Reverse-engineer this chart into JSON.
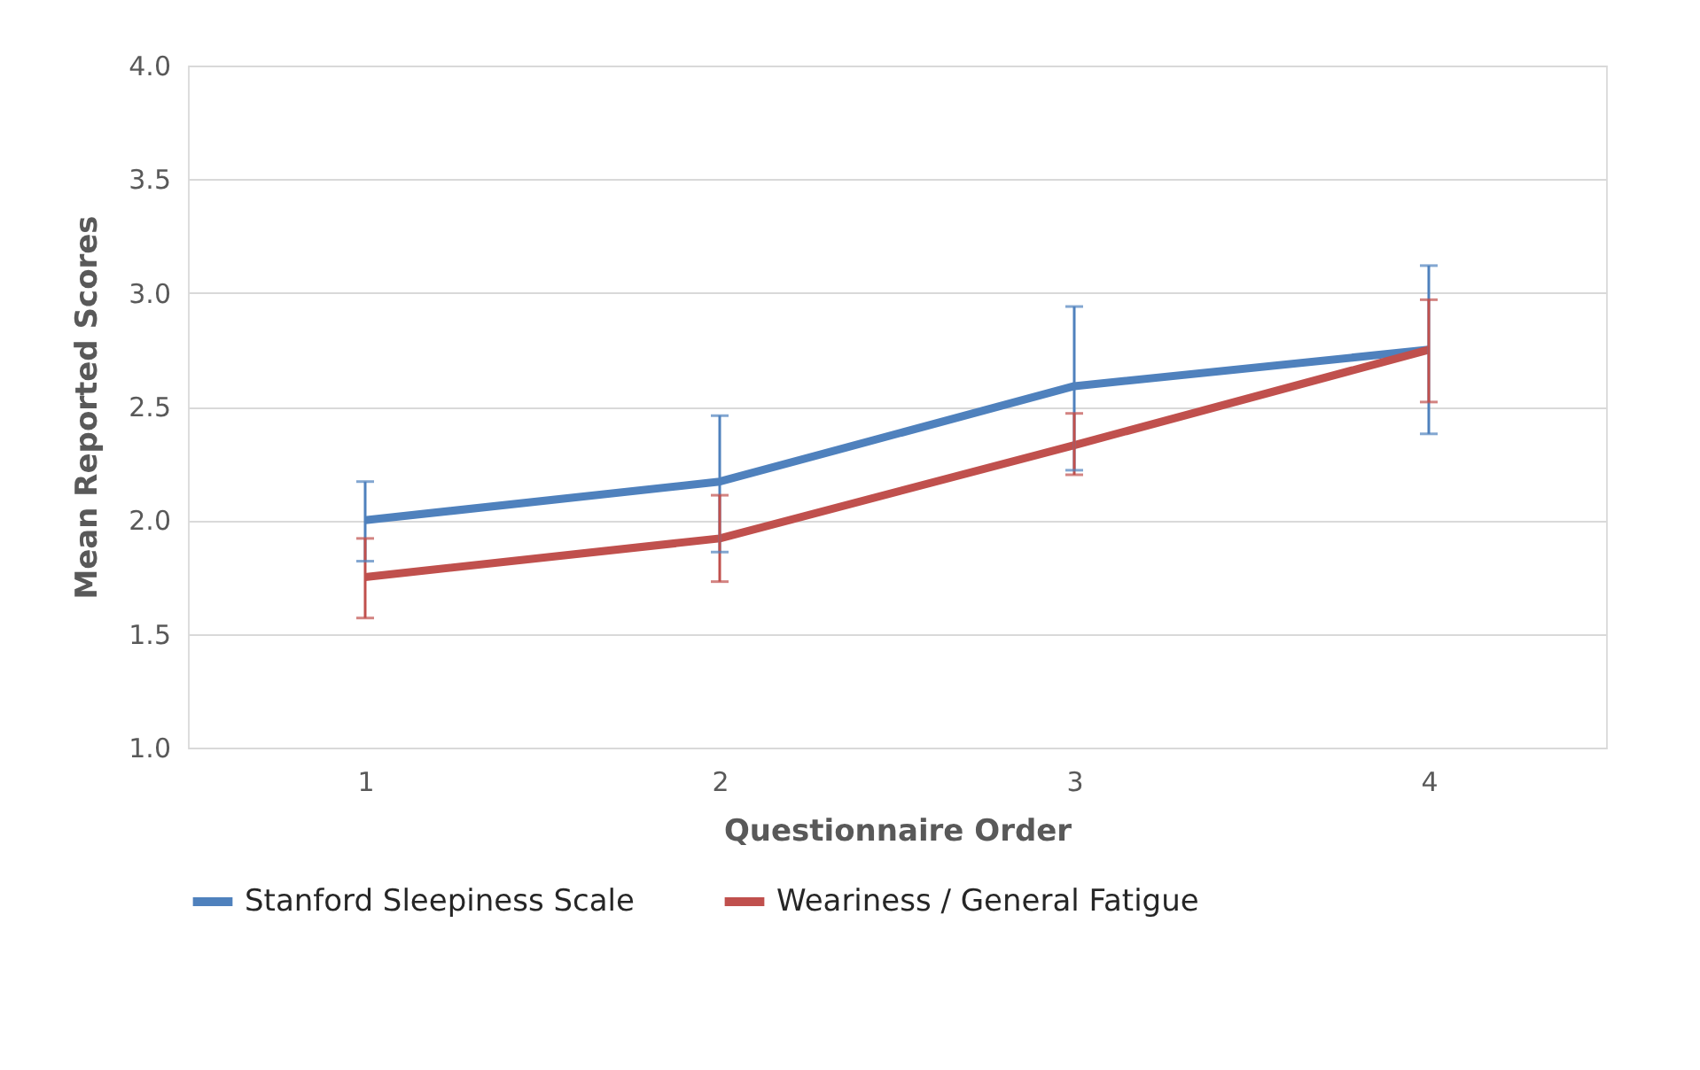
{
  "chart_data": {
    "type": "line",
    "xlabel": "Questionnaire Order",
    "ylabel": "Mean Reported Scores",
    "categories": [
      "1",
      "2",
      "3",
      "4"
    ],
    "series": [
      {
        "name": "Stanford Sleepiness Scale",
        "color": "#4f81bd",
        "values": [
          2.0,
          2.17,
          2.59,
          2.75
        ],
        "errors": [
          [
            1.82,
            2.17
          ],
          [
            1.86,
            2.46
          ],
          [
            2.22,
            2.94
          ],
          [
            2.38,
            3.12
          ]
        ]
      },
      {
        "name": "Weariness / General Fatigue",
        "color": "#c0504d",
        "values": [
          1.75,
          1.92,
          2.33,
          2.75
        ],
        "errors": [
          [
            1.57,
            1.92
          ],
          [
            1.73,
            2.11
          ],
          [
            2.2,
            2.47
          ],
          [
            2.52,
            2.97
          ]
        ]
      }
    ],
    "ylim": [
      1.0,
      4.0
    ],
    "yticks": [
      {
        "value": 1.0,
        "label": "1.0"
      },
      {
        "value": 1.5,
        "label": "1.5"
      },
      {
        "value": 2.0,
        "label": "2.0"
      },
      {
        "value": 2.5,
        "label": "2.5"
      },
      {
        "value": 3.0,
        "label": "3.0"
      },
      {
        "value": 3.5,
        "label": "3.5"
      },
      {
        "value": 4.0,
        "label": "4.0"
      }
    ],
    "grid": "y",
    "legend": "bottom",
    "marker": "none",
    "line_style": "solid"
  }
}
